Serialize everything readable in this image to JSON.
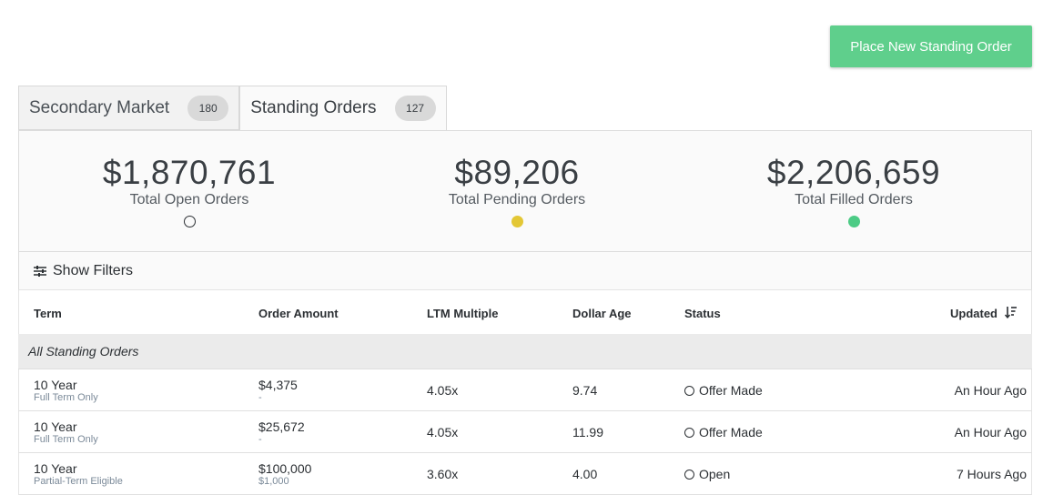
{
  "header": {
    "place_order_label": "Place New Standing Order"
  },
  "tabs": [
    {
      "label": "Secondary Market",
      "count": "180"
    },
    {
      "label": "Standing Orders",
      "count": "127"
    }
  ],
  "summary": [
    {
      "value": "$1,870,761",
      "label": "Total Open Orders",
      "dot_color": "none"
    },
    {
      "value": "$89,206",
      "label": "Total Pending Orders",
      "dot_color": "#e3c735"
    },
    {
      "value": "$2,206,659",
      "label": "Total Filled Orders",
      "dot_color": "#4ccb85"
    }
  ],
  "filters": {
    "label": "Show Filters",
    "icon": "sliders-icon"
  },
  "table": {
    "columns": [
      "Term",
      "Order Amount",
      "LTM Multiple",
      "Dollar Age",
      "Status",
      "Updated"
    ],
    "sort_icon": "sort-descending-icon",
    "group_label": "All Standing Orders",
    "rows": [
      {
        "term": "10 Year",
        "term_sub": "Full Term Only",
        "amount": "$4,375",
        "amount_sub": "-",
        "ltm": "4.05x",
        "age": "9.74",
        "status": "Offer Made",
        "updated": "An Hour Ago"
      },
      {
        "term": "10 Year",
        "term_sub": "Full Term Only",
        "amount": "$25,672",
        "amount_sub": "-",
        "ltm": "4.05x",
        "age": "11.99",
        "status": "Offer Made",
        "updated": "An Hour Ago"
      },
      {
        "term": "10 Year",
        "term_sub": "Partial-Term Eligible",
        "amount": "$100,000",
        "amount_sub": "$1,000",
        "ltm": "3.60x",
        "age": "4.00",
        "status": "Open",
        "updated": "7 Hours Ago"
      }
    ]
  }
}
